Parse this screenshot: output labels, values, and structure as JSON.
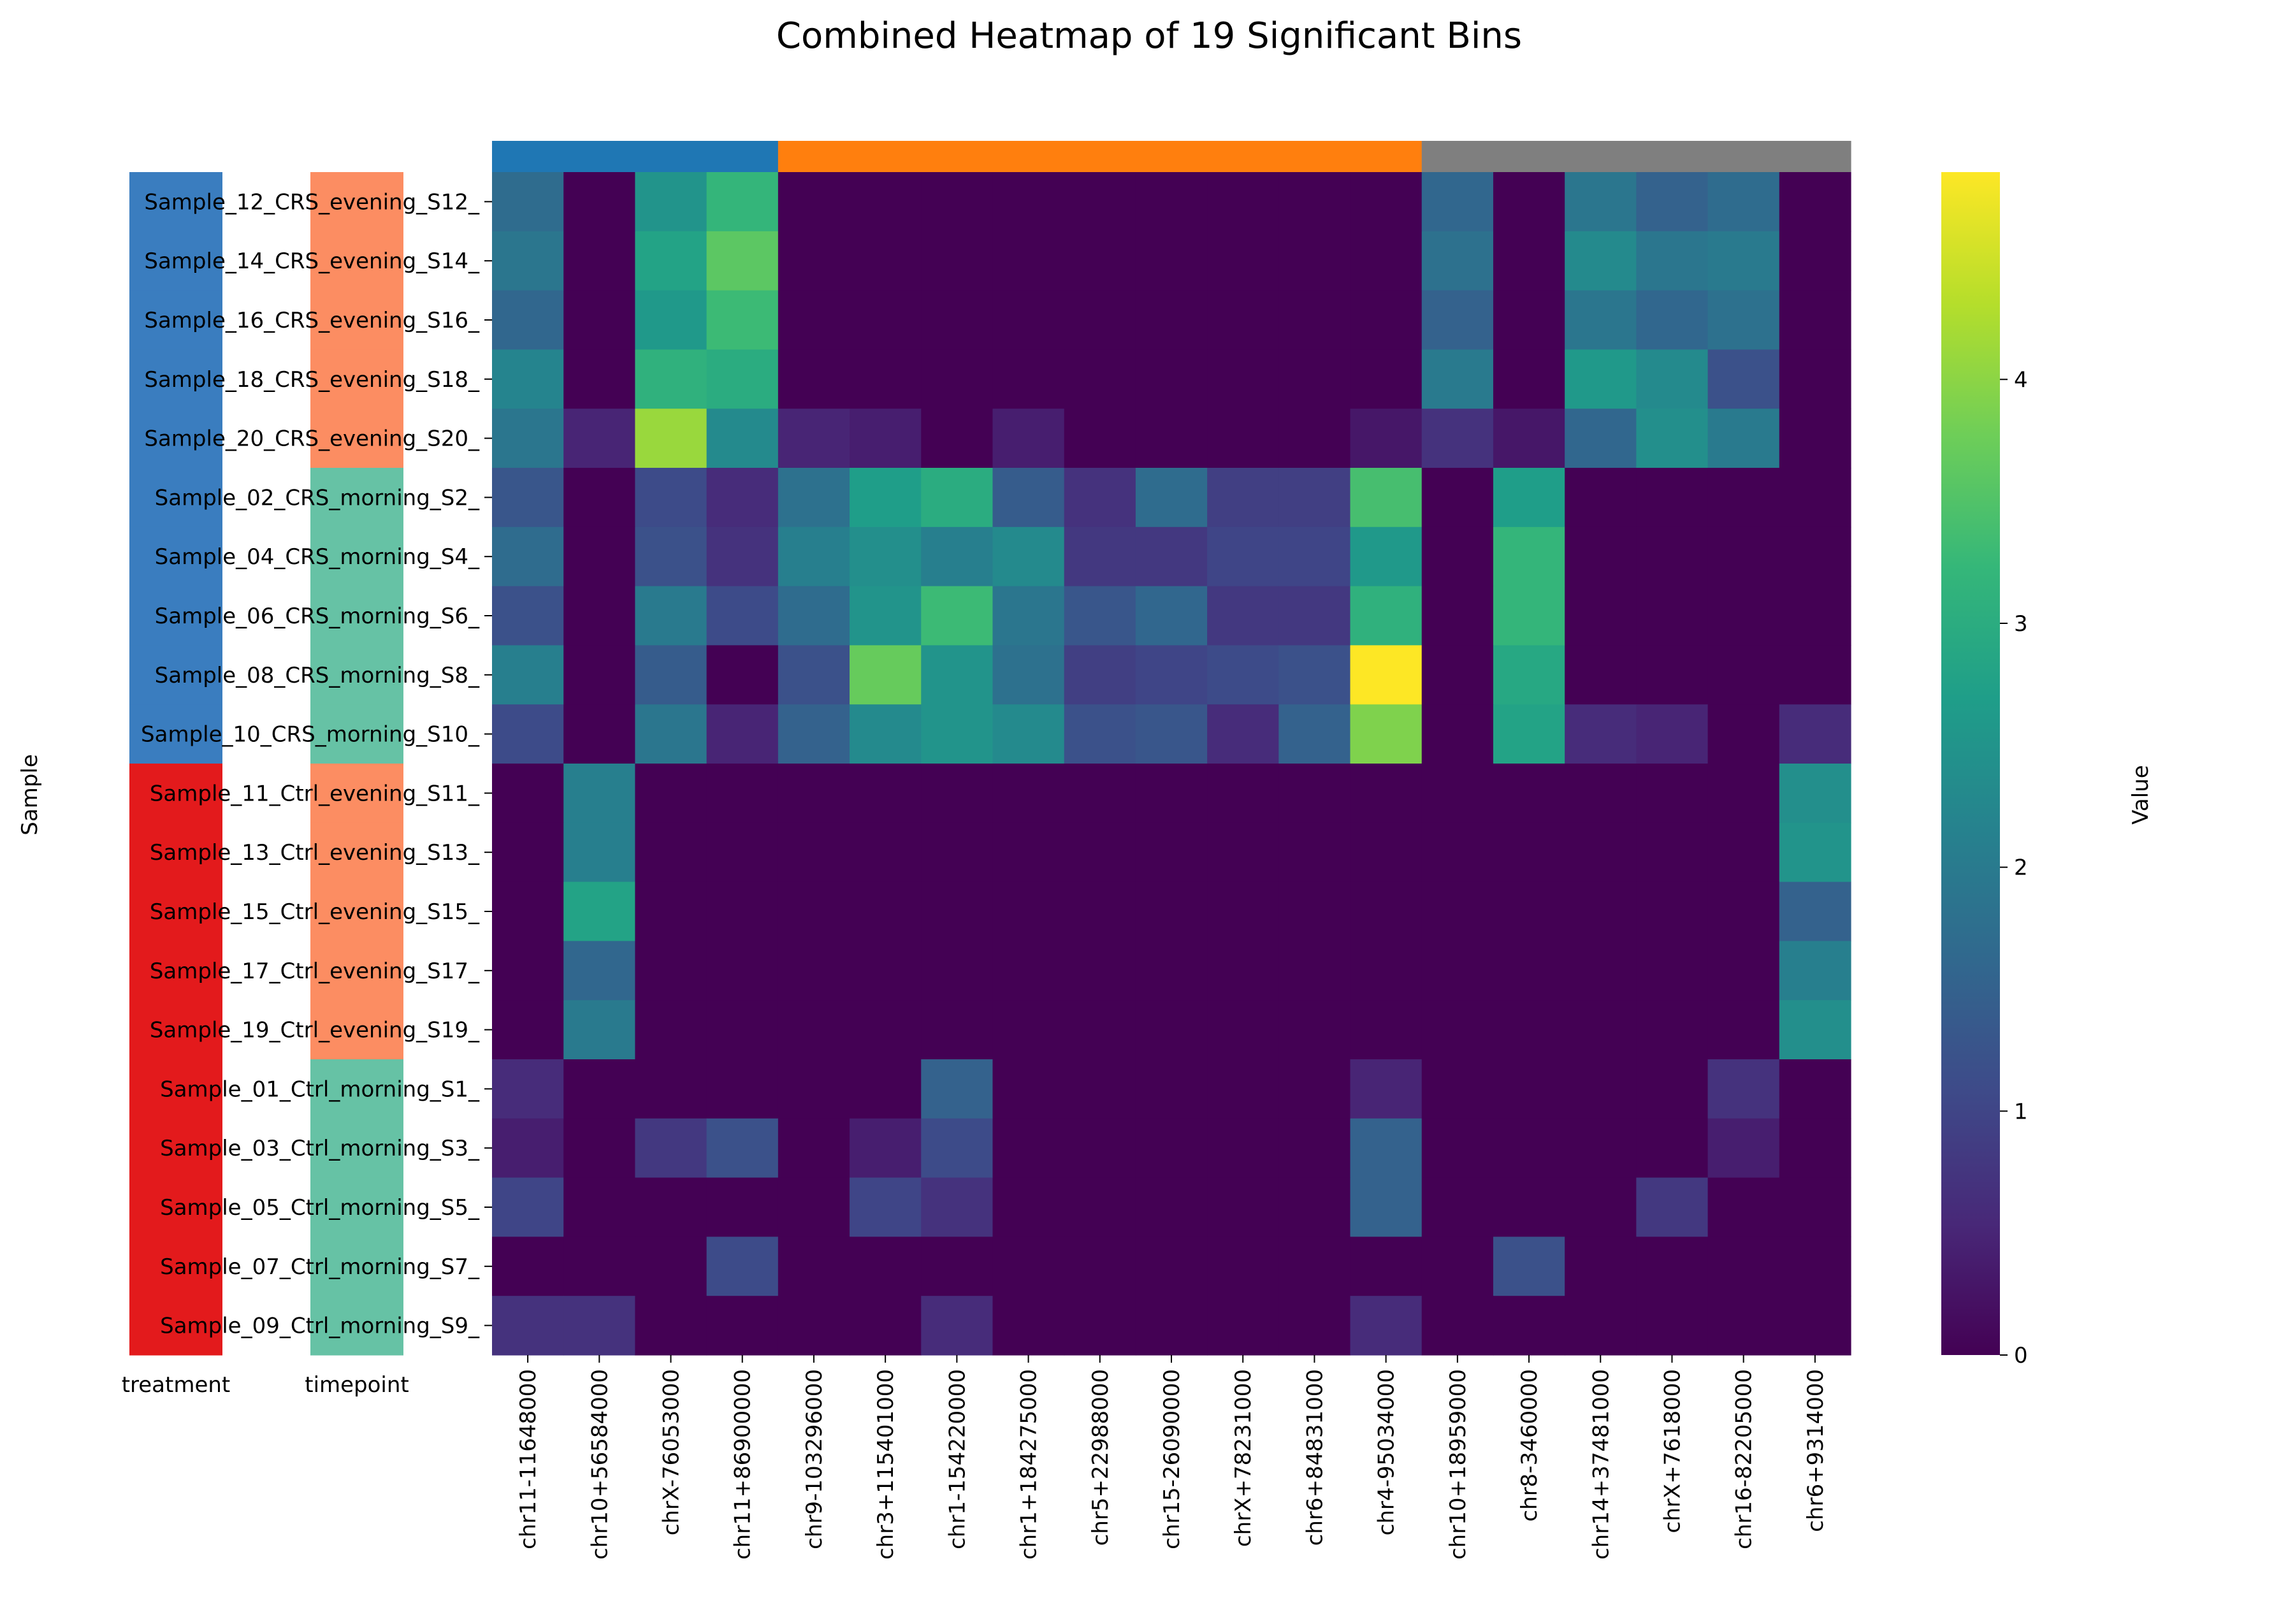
{
  "chart_data": {
    "type": "heatmap",
    "title": "Combined Heatmap of 19 Significant Bins",
    "ylabel": "Sample",
    "colorbar_label": "Value",
    "colorbar_range": [
      0,
      4.85
    ],
    "colorbar_ticks": [
      0,
      1,
      2,
      3,
      4
    ],
    "colormap": [
      "#440154",
      "#482878",
      "#3e4a89",
      "#31688e",
      "#26828e",
      "#1f9e89",
      "#35b779",
      "#6ece58",
      "#b5de2b",
      "#fde725"
    ],
    "annotation_column_labels": [
      "treatment",
      "timepoint"
    ],
    "annotation_colors": {
      "treatment": {
        "CRS": "#3a7dbf",
        "Ctrl": "#e31a1c"
      },
      "timepoint": {
        "evening": "#fc8d62",
        "morning": "#66c2a5"
      }
    },
    "column_groups": [
      {
        "count": 4,
        "color": "#1f77b4"
      },
      {
        "count": 9,
        "color": "#ff7f0e"
      },
      {
        "count": 6,
        "color": "#7f7f7f"
      }
    ],
    "columns": [
      "chr11-11648000",
      "chr10+56584000",
      "chrX-76053000",
      "chr11+86900000",
      "chr9-103296000",
      "chr3+115401000",
      "chr1-154220000",
      "chr1+184275000",
      "chr5+22988000",
      "chr15-26090000",
      "chrX+78231000",
      "chr6+84831000",
      "chr4-95034000",
      "chr10+18959000",
      "chr8-3460000",
      "chr14+37481000",
      "chrX+7618000",
      "chr16-82205000",
      "chr6+9314000"
    ],
    "rows": [
      {
        "label": "Sample_12_CRS_evening_S12_",
        "treatment": "CRS",
        "timepoint": "evening",
        "values": [
          1.7,
          0,
          2.5,
          3.2,
          0,
          0,
          0,
          0,
          0,
          0,
          0,
          0,
          0,
          1.6,
          0,
          1.9,
          1.5,
          1.7,
          0
        ]
      },
      {
        "label": "Sample_14_CRS_evening_S14_",
        "treatment": "CRS",
        "timepoint": "evening",
        "values": [
          1.9,
          0,
          2.8,
          3.6,
          0,
          0,
          0,
          0,
          0,
          0,
          0,
          0,
          0,
          1.8,
          0,
          2.3,
          1.9,
          2.0,
          0
        ]
      },
      {
        "label": "Sample_16_CRS_evening_S16_",
        "treatment": "CRS",
        "timepoint": "evening",
        "values": [
          1.6,
          0,
          2.6,
          3.3,
          0,
          0,
          0,
          0,
          0,
          0,
          0,
          0,
          0,
          1.5,
          0,
          1.9,
          1.6,
          1.8,
          0
        ]
      },
      {
        "label": "Sample_18_CRS_evening_S18_",
        "treatment": "CRS",
        "timepoint": "evening",
        "values": [
          2.2,
          0,
          3.1,
          3.0,
          0,
          0,
          0,
          0,
          0,
          0,
          0,
          0,
          0,
          2.0,
          0,
          2.6,
          2.3,
          1.2,
          0
        ]
      },
      {
        "label": "Sample_20_CRS_evening_S20_",
        "treatment": "CRS",
        "timepoint": "evening",
        "values": [
          1.9,
          0.5,
          4.1,
          2.3,
          0.5,
          0.4,
          0,
          0.4,
          0,
          0,
          0,
          0,
          0.3,
          0.7,
          0.3,
          1.6,
          2.4,
          2.0,
          0
        ]
      },
      {
        "label": "Sample_02_CRS_morning_S2_",
        "treatment": "CRS",
        "timepoint": "morning",
        "values": [
          1.3,
          0,
          1.1,
          0.6,
          1.8,
          2.7,
          3.0,
          1.4,
          0.7,
          1.7,
          0.9,
          0.9,
          3.4,
          0,
          2.7,
          0,
          0,
          0,
          0
        ]
      },
      {
        "label": "Sample_04_CRS_morning_S4_",
        "treatment": "CRS",
        "timepoint": "morning",
        "values": [
          1.7,
          0,
          1.2,
          0.7,
          2.1,
          2.4,
          2.1,
          2.3,
          0.8,
          0.8,
          1.0,
          1.0,
          2.6,
          0,
          3.2,
          0,
          0,
          0,
          0
        ]
      },
      {
        "label": "Sample_06_CRS_morning_S6_",
        "treatment": "CRS",
        "timepoint": "morning",
        "values": [
          1.2,
          0,
          2.0,
          1.1,
          1.7,
          2.5,
          3.3,
          1.9,
          1.3,
          1.6,
          0.8,
          0.8,
          3.1,
          0,
          3.2,
          0,
          0,
          0,
          0
        ]
      },
      {
        "label": "Sample_08_CRS_morning_S8_",
        "treatment": "CRS",
        "timepoint": "morning",
        "values": [
          2.1,
          0,
          1.4,
          0,
          1.2,
          3.7,
          2.5,
          1.8,
          0.9,
          1.0,
          1.1,
          1.2,
          4.85,
          0,
          2.9,
          0,
          0,
          0,
          0
        ]
      },
      {
        "label": "Sample_10_CRS_morning_S10_",
        "treatment": "CRS",
        "timepoint": "morning",
        "values": [
          1.1,
          0,
          1.9,
          0.5,
          1.5,
          2.3,
          2.5,
          2.3,
          1.2,
          1.3,
          0.6,
          1.5,
          3.9,
          0,
          2.8,
          0.6,
          0.5,
          0,
          0.6
        ]
      },
      {
        "label": "Sample_11_Ctrl_evening_S11_",
        "treatment": "Ctrl",
        "timepoint": "evening",
        "values": [
          0,
          2.1,
          0,
          0,
          0,
          0,
          0,
          0,
          0,
          0,
          0,
          0,
          0,
          0,
          0,
          0,
          0,
          0,
          2.4
        ]
      },
      {
        "label": "Sample_13_Ctrl_evening_S13_",
        "treatment": "Ctrl",
        "timepoint": "evening",
        "values": [
          0,
          2.1,
          0,
          0,
          0,
          0,
          0,
          0,
          0,
          0,
          0,
          0,
          0,
          0,
          0,
          0,
          0,
          0,
          2.5
        ]
      },
      {
        "label": "Sample_15_Ctrl_evening_S15_",
        "treatment": "Ctrl",
        "timepoint": "evening",
        "values": [
          0,
          2.8,
          0,
          0,
          0,
          0,
          0,
          0,
          0,
          0,
          0,
          0,
          0,
          0,
          0,
          0,
          0,
          0,
          1.5
        ]
      },
      {
        "label": "Sample_17_Ctrl_evening_S17_",
        "treatment": "Ctrl",
        "timepoint": "evening",
        "values": [
          0,
          1.6,
          0,
          0,
          0,
          0,
          0,
          0,
          0,
          0,
          0,
          0,
          0,
          0,
          0,
          0,
          0,
          0,
          2.1
        ]
      },
      {
        "label": "Sample_19_Ctrl_evening_S19_",
        "treatment": "Ctrl",
        "timepoint": "evening",
        "values": [
          0,
          2.0,
          0,
          0,
          0,
          0,
          0,
          0,
          0,
          0,
          0,
          0,
          0,
          0,
          0,
          0,
          0,
          0,
          2.4
        ]
      },
      {
        "label": "Sample_01_Ctrl_morning_S1_",
        "treatment": "Ctrl",
        "timepoint": "morning",
        "values": [
          0.6,
          0,
          0,
          0,
          0,
          0,
          1.5,
          0,
          0,
          0,
          0,
          0,
          0.5,
          0,
          0,
          0,
          0,
          0.7,
          0
        ]
      },
      {
        "label": "Sample_03_Ctrl_morning_S3_",
        "treatment": "Ctrl",
        "timepoint": "morning",
        "values": [
          0.4,
          0,
          0.8,
          1.2,
          0,
          0.4,
          1.1,
          0,
          0,
          0,
          0,
          0,
          1.5,
          0,
          0,
          0,
          0,
          0.4,
          0
        ]
      },
      {
        "label": "Sample_05_Ctrl_morning_S5_",
        "treatment": "Ctrl",
        "timepoint": "morning",
        "values": [
          1.0,
          0,
          0,
          0,
          0,
          1.0,
          0.7,
          0,
          0,
          0,
          0,
          0,
          1.5,
          0,
          0,
          0,
          0.8,
          0,
          0
        ]
      },
      {
        "label": "Sample_07_Ctrl_morning_S7_",
        "treatment": "Ctrl",
        "timepoint": "morning",
        "values": [
          0,
          0,
          0,
          1.1,
          0,
          0,
          0,
          0,
          0,
          0,
          0,
          0,
          0,
          0,
          1.2,
          0,
          0,
          0,
          0
        ]
      },
      {
        "label": "Sample_09_Ctrl_morning_S9_",
        "treatment": "Ctrl",
        "timepoint": "morning",
        "values": [
          0.7,
          0.7,
          0,
          0,
          0,
          0,
          0.6,
          0,
          0,
          0,
          0,
          0,
          0.6,
          0,
          0,
          0,
          0,
          0,
          0
        ]
      }
    ]
  }
}
